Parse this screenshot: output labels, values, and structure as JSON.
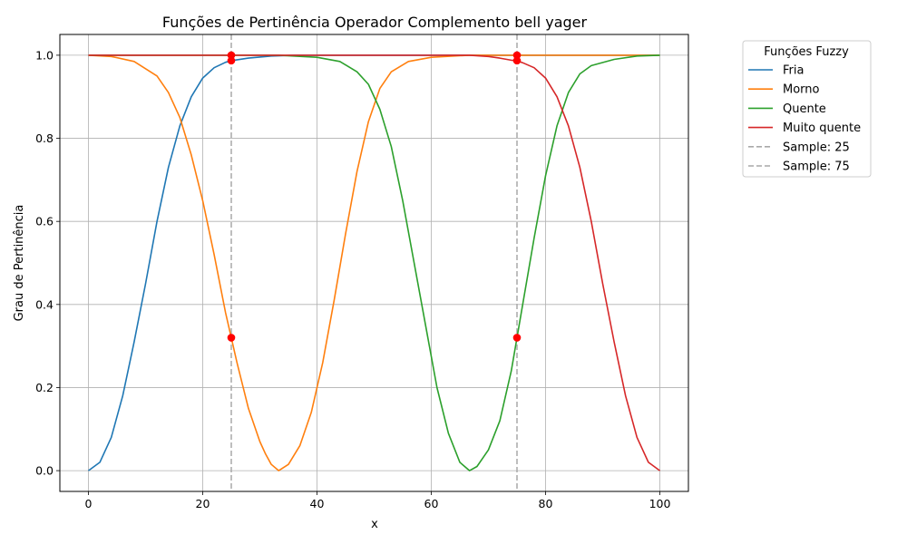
{
  "chart_data": {
    "type": "line",
    "title": "Funções de Pertinência Operador Complemento bell yager",
    "xlabel": "x",
    "ylabel": "Grau de Pertinência",
    "xlim": [
      -5,
      105
    ],
    "ylim": [
      -0.05,
      1.05
    ],
    "xticks": [
      "0",
      "20",
      "40",
      "60",
      "80",
      "100"
    ],
    "yticks": [
      "0.0",
      "0.2",
      "0.4",
      "0.6",
      "0.8",
      "1.0"
    ],
    "grid": true,
    "legend": {
      "title": "Funções Fuzzy",
      "placement": "outside right"
    },
    "series": [
      {
        "name": "Fria",
        "color": "#1f77b4",
        "style": "solid",
        "x": [
          0,
          2,
          4,
          6,
          8,
          10,
          12,
          14,
          16,
          18,
          20,
          22,
          24,
          25,
          28,
          32,
          36,
          40,
          50,
          60,
          70,
          75,
          80,
          90,
          100
        ],
        "y": [
          0.0,
          0.02,
          0.08,
          0.18,
          0.31,
          0.45,
          0.6,
          0.73,
          0.83,
          0.9,
          0.945,
          0.97,
          0.983,
          0.987,
          0.993,
          0.998,
          1.0,
          1.0,
          1.0,
          1.0,
          1.0,
          1.0,
          1.0,
          1.0,
          1.0
        ]
      },
      {
        "name": "Morno",
        "color": "#ff7f0e",
        "style": "solid",
        "x": [
          0,
          4,
          8,
          12,
          14,
          16,
          18,
          20,
          22,
          24,
          25,
          26,
          28,
          30,
          31,
          32,
          33.3,
          35,
          37,
          39,
          41,
          43,
          45,
          47,
          49,
          51,
          53,
          56,
          60,
          66.7,
          70,
          75,
          80,
          90,
          100
        ],
        "y": [
          1.0,
          0.997,
          0.985,
          0.95,
          0.91,
          0.85,
          0.76,
          0.65,
          0.52,
          0.38,
          0.32,
          0.26,
          0.15,
          0.07,
          0.04,
          0.015,
          0.0,
          0.015,
          0.06,
          0.14,
          0.26,
          0.41,
          0.57,
          0.72,
          0.84,
          0.92,
          0.96,
          0.985,
          0.995,
          1.0,
          1.0,
          1.0,
          1.0,
          1.0,
          1.0
        ]
      },
      {
        "name": "Quente",
        "color": "#2ca02c",
        "style": "solid",
        "x": [
          0,
          10,
          20,
          33.3,
          40,
          44,
          47,
          49,
          51,
          53,
          55,
          57,
          59,
          61,
          63,
          65,
          66.7,
          68,
          70,
          72,
          74,
          75,
          76,
          78,
          80,
          82,
          84,
          86,
          88,
          92,
          96,
          100
        ],
        "y": [
          1.0,
          1.0,
          1.0,
          1.0,
          0.995,
          0.985,
          0.96,
          0.93,
          0.87,
          0.78,
          0.65,
          0.5,
          0.35,
          0.2,
          0.09,
          0.02,
          0.0,
          0.01,
          0.05,
          0.12,
          0.24,
          0.32,
          0.4,
          0.56,
          0.71,
          0.83,
          0.91,
          0.955,
          0.975,
          0.99,
          0.998,
          1.0
        ]
      },
      {
        "name": "Muito quente",
        "color": "#d62728",
        "style": "solid",
        "x": [
          0,
          20,
          40,
          60,
          66.7,
          70,
          72,
          74,
          75,
          76,
          78,
          80,
          82,
          84,
          86,
          88,
          90,
          92,
          94,
          96,
          98,
          100
        ],
        "y": [
          1.0,
          1.0,
          1.0,
          1.0,
          1.0,
          0.997,
          0.993,
          0.988,
          0.987,
          0.982,
          0.97,
          0.945,
          0.9,
          0.83,
          0.73,
          0.6,
          0.45,
          0.31,
          0.18,
          0.08,
          0.02,
          0.0
        ]
      },
      {
        "name": "Sample: 25",
        "color": "#a9a9a9",
        "style": "dashed",
        "vline": 25
      },
      {
        "name": "Sample: 75",
        "color": "#a9a9a9",
        "style": "dashed",
        "vline": 75
      }
    ],
    "points": [
      {
        "x": 25,
        "y": 1.0
      },
      {
        "x": 25,
        "y": 0.987
      },
      {
        "x": 25,
        "y": 0.32
      },
      {
        "x": 75,
        "y": 1.0
      },
      {
        "x": 75,
        "y": 0.987
      },
      {
        "x": 75,
        "y": 0.32
      }
    ],
    "point_color": "#ff0000"
  }
}
